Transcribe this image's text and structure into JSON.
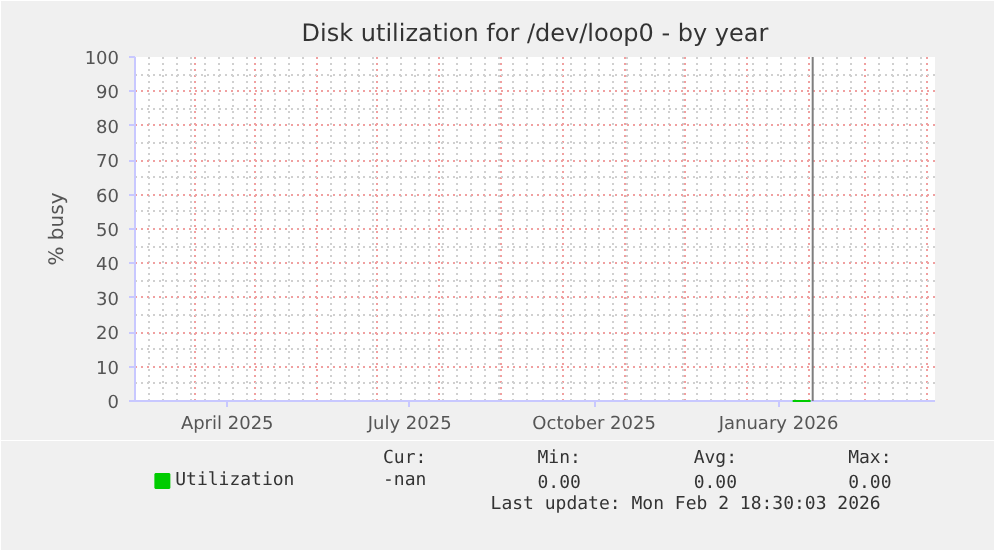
{
  "chart_data": {
    "type": "line",
    "title": "Disk utilization for /dev/loop0 - by year",
    "ylabel": "% busy",
    "xlim": [
      "2025-03-02",
      "2026-04-05"
    ],
    "xticks": [
      {
        "value": "2025-04-17",
        "label": "April 2025"
      },
      {
        "value": "2025-07-17",
        "label": "July 2025"
      },
      {
        "value": "2025-10-17",
        "label": "October 2025"
      },
      {
        "value": "2026-01-17",
        "label": "January 2026"
      }
    ],
    "ylim": [
      0,
      100
    ],
    "yticks": [
      0,
      10,
      20,
      30,
      40,
      50,
      60,
      70,
      80,
      90,
      100
    ],
    "series": [
      {
        "name": "Utilization",
        "color": "#00cc00",
        "x": [
          "2026-01-24",
          "2026-02-02"
        ],
        "values": [
          0,
          0
        ]
      }
    ],
    "ref_lines": [
      {
        "axis": "x",
        "value": "2026-02-03",
        "label": null,
        "color": "#7f7f7f"
      }
    ],
    "annotations": [
      "Cur:",
      "Min:",
      "Avg:",
      "Max:",
      "-nan",
      "0.00",
      "0.00",
      "0.00",
      "Last update: Mon Feb  2 18:30:03 2026"
    ],
    "grid": true,
    "legend": "bottom"
  }
}
